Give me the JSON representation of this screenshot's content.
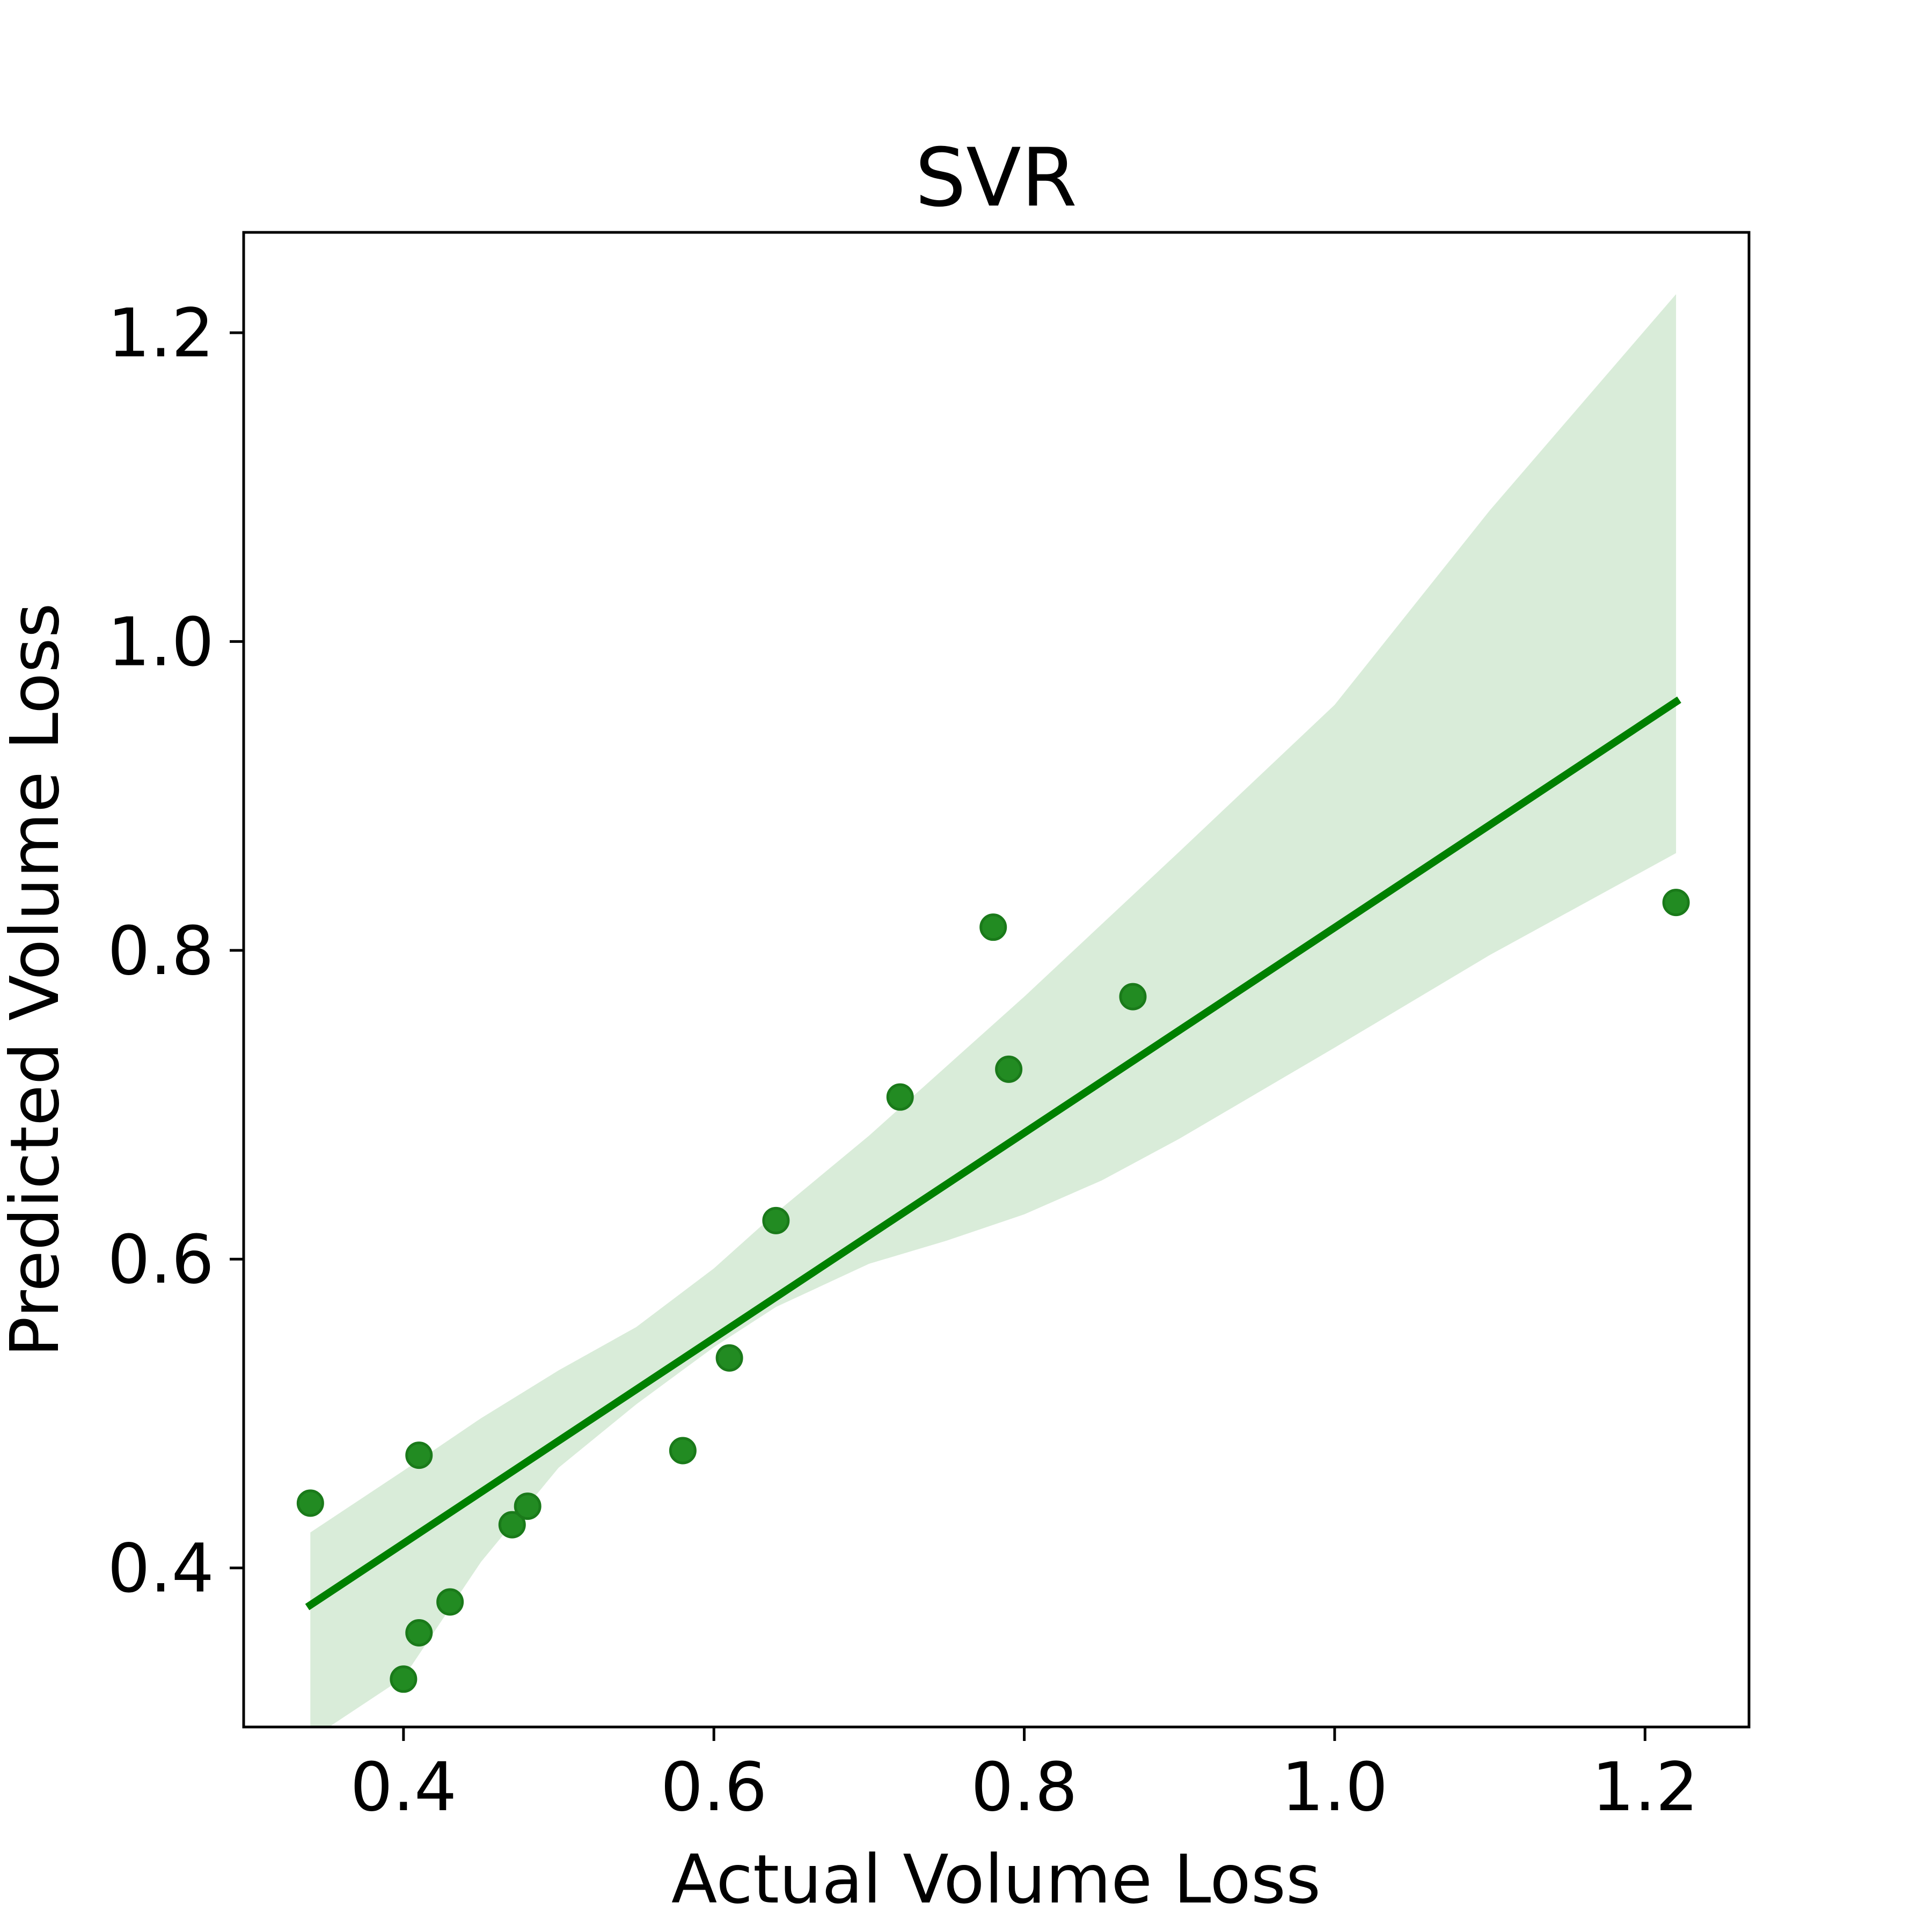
{
  "chart_data": {
    "type": "scatter",
    "title": "SVR",
    "xlabel": "Actual Volume Loss",
    "ylabel": "Predicted Volume Loss",
    "xlim": [
      0.297,
      1.267
    ],
    "ylim": [
      0.297,
      1.265
    ],
    "xticks": [
      "0.4",
      "0.6",
      "0.8",
      "1.0",
      "1.2"
    ],
    "yticks": [
      "0.4",
      "0.6",
      "0.8",
      "1.0",
      "1.2"
    ],
    "grid": false,
    "legend": "none",
    "points": [
      {
        "x": 0.34,
        "y": 0.442
      },
      {
        "x": 0.4,
        "y": 0.328
      },
      {
        "x": 0.41,
        "y": 0.358
      },
      {
        "x": 0.41,
        "y": 0.473
      },
      {
        "x": 0.43,
        "y": 0.378
      },
      {
        "x": 0.47,
        "y": 0.428
      },
      {
        "x": 0.48,
        "y": 0.44
      },
      {
        "x": 0.58,
        "y": 0.476
      },
      {
        "x": 0.61,
        "y": 0.536
      },
      {
        "x": 0.64,
        "y": 0.625
      },
      {
        "x": 0.72,
        "y": 0.705
      },
      {
        "x": 0.78,
        "y": 0.815
      },
      {
        "x": 0.79,
        "y": 0.723
      },
      {
        "x": 0.87,
        "y": 0.77
      },
      {
        "x": 1.22,
        "y": 0.831
      }
    ],
    "regression_line": {
      "x": [
        0.34,
        1.22
      ],
      "y": [
        0.376,
        0.961
      ]
    },
    "confidence_band": {
      "x": [
        0.34,
        0.4,
        0.45,
        0.5,
        0.55,
        0.6,
        0.64,
        0.7,
        0.75,
        0.8,
        0.85,
        0.9,
        1.0,
        1.1,
        1.22
      ],
      "upper": [
        0.423,
        0.463,
        0.497,
        0.528,
        0.556,
        0.594,
        0.63,
        0.68,
        0.725,
        0.77,
        0.817,
        0.864,
        0.959,
        1.085,
        1.225
      ],
      "lower": [
        0.289,
        0.329,
        0.404,
        0.465,
        0.506,
        0.543,
        0.569,
        0.597,
        0.612,
        0.629,
        0.651,
        0.678,
        0.737,
        0.797,
        0.863
      ]
    },
    "colors": {
      "points_fill": "#228b22",
      "points_stroke": "#1a7a1a",
      "line": "#008000",
      "band": "#d9ecd9"
    }
  }
}
